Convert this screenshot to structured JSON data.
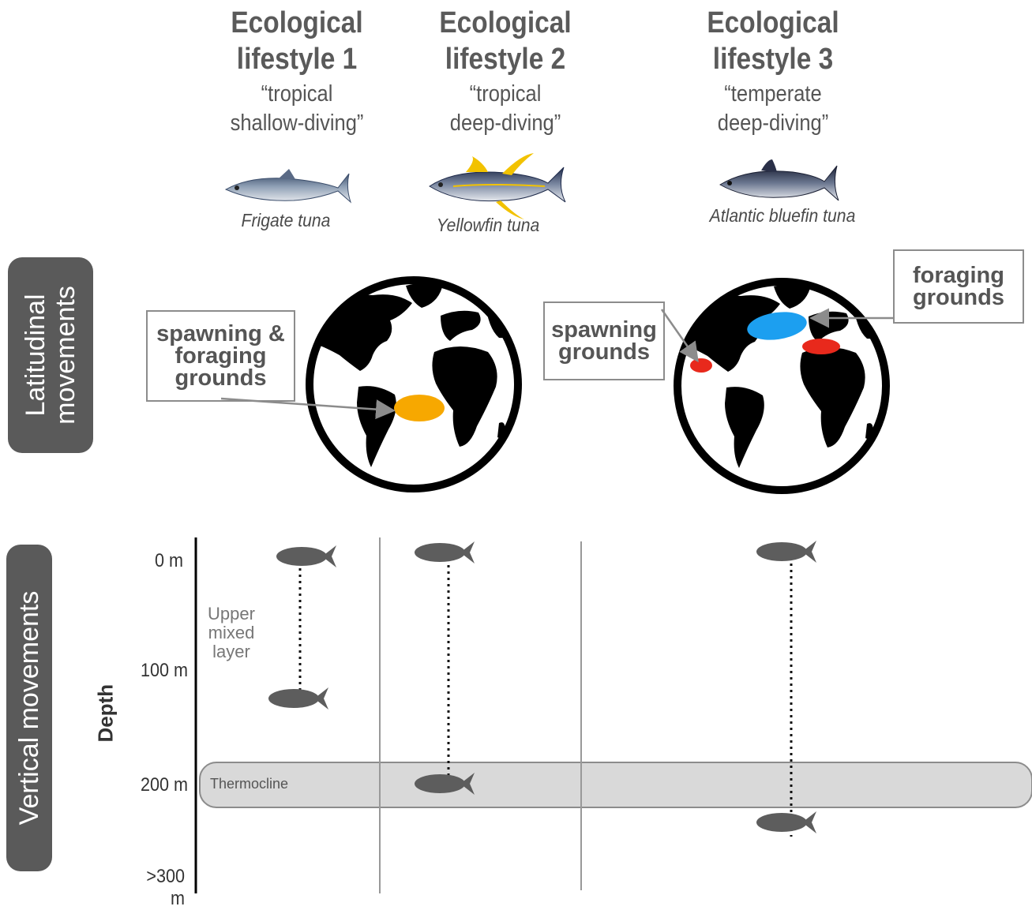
{
  "lifestyles": [
    {
      "title_line1": "Ecological",
      "title_line2": "lifestyle 1",
      "sub_line1": "“tropical",
      "sub_line2": "shallow-diving”",
      "species": "Frigate tuna"
    },
    {
      "title_line1": "Ecological",
      "title_line2": "lifestyle 2",
      "sub_line1": "“tropical",
      "sub_line2": "deep-diving”",
      "species": "Yellowfin tuna"
    },
    {
      "title_line1": "Ecological",
      "title_line2": "lifestyle 3",
      "sub_line1": "“temperate",
      "sub_line2": "deep-diving”",
      "species": "Atlantic bluefin tuna"
    }
  ],
  "rows": {
    "latitudinal": "Latitudinal\nmovements",
    "vertical": "Vertical movements"
  },
  "callouts": {
    "spawning_foraging": "spawning &\nforaging\ngrounds",
    "spawning": "spawning\ngrounds",
    "foraging": "foraging\ngrounds"
  },
  "depth": {
    "axis_label": "Depth",
    "ticks": [
      "0 m",
      "100 m",
      "200 m",
      ">300 m"
    ],
    "upper_mixed_layer": "Upper\nmixed\nlayer",
    "thermocline": "Thermocline"
  },
  "dive_ranges": [
    {
      "lifestyle": 1,
      "min_depth_m": 0,
      "max_depth_m": 125
    },
    {
      "lifestyle": 2,
      "min_depth_m": 0,
      "max_depth_m": 200
    },
    {
      "lifestyle": 3,
      "min_depth_m": 0,
      "max_depth_m": 240
    }
  ],
  "colors": {
    "tab": "#5a5a5a",
    "fish_silhouette": "#5d5d5d",
    "tropical_grounds": "#f7a800",
    "spawning_grounds": "#e8291c",
    "foraging_grounds": "#1c9ff0",
    "thermocline_band": "#d9d9d9"
  }
}
